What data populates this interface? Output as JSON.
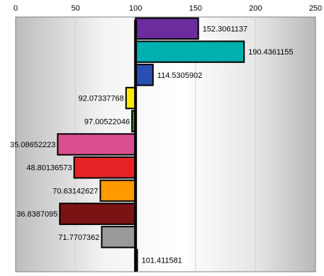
{
  "chart_data": {
    "type": "bar",
    "orientation": "horizontal",
    "baseline": 100,
    "xlim": [
      0,
      250
    ],
    "x_ticks": [
      "0",
      "50",
      "100",
      "150",
      "200",
      "250"
    ],
    "grid": true,
    "legend": "none",
    "values": [
      152.3061137,
      190.4361155,
      114.5305902,
      92.07337768,
      97.00522046,
      35.08652223,
      48.80136573,
      70.63142627,
      36.8387095,
      71.7707362,
      101.411581
    ],
    "value_labels": [
      "152.3061137",
      "190.4361155",
      "114.5305902",
      "92.07337768",
      "97.00522046",
      "35.08652223",
      "48.80136573",
      "70.63142627",
      "36.8387095",
      "71.7707362",
      "101.411581"
    ],
    "colors": [
      "#6b2c9e",
      "#00b0ae",
      "#2a4fb0",
      "#ffec00",
      "#4a8a1a",
      "#d94f8e",
      "#e52226",
      "#ff9a00",
      "#7a1414",
      "#9a9a9a",
      "#202020"
    ]
  }
}
